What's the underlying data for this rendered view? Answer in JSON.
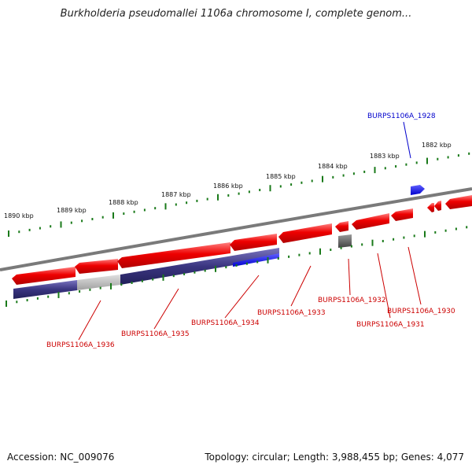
{
  "title": "Burkholderia pseudomallei 1106a chromosome I, complete genom...",
  "footer": {
    "accession": "Accession: NC_009076",
    "summary": "Topology: circular; Length: 3,988,455 bp; Genes: 4,077"
  },
  "colors": {
    "forward_gene": "#e00000",
    "reverse_gene": "#3a3580",
    "highlight_blue": "#0000dd",
    "gray_gene": "#666666",
    "backbone": "#7a7a7a",
    "tick": "#1a7a1a",
    "label_red": "#cc0000",
    "label_blue": "#0000cc"
  },
  "scale_ticks": [
    {
      "label": "1890 kbp"
    },
    {
      "label": "1889 kbp"
    },
    {
      "label": "1888 kbp"
    },
    {
      "label": "1887 kbp"
    },
    {
      "label": "1886 kbp"
    },
    {
      "label": "1885 kbp"
    },
    {
      "label": "1884 kbp"
    },
    {
      "label": "1883 kbp"
    },
    {
      "label": "1882 kbp"
    }
  ],
  "gene_labels": [
    {
      "name": "BURPS1106A_1928",
      "color": "blue"
    },
    {
      "name": "BURPS1106A_1932",
      "color": "red"
    },
    {
      "name": "BURPS1106A_1930",
      "color": "red"
    },
    {
      "name": "BURPS1106A_1931",
      "color": "red"
    },
    {
      "name": "BURPS1106A_1933",
      "color": "red"
    },
    {
      "name": "BURPS1106A_1934",
      "color": "red"
    },
    {
      "name": "BURPS1106A_1935",
      "color": "red"
    },
    {
      "name": "BURPS1106A_1936",
      "color": "red"
    }
  ]
}
